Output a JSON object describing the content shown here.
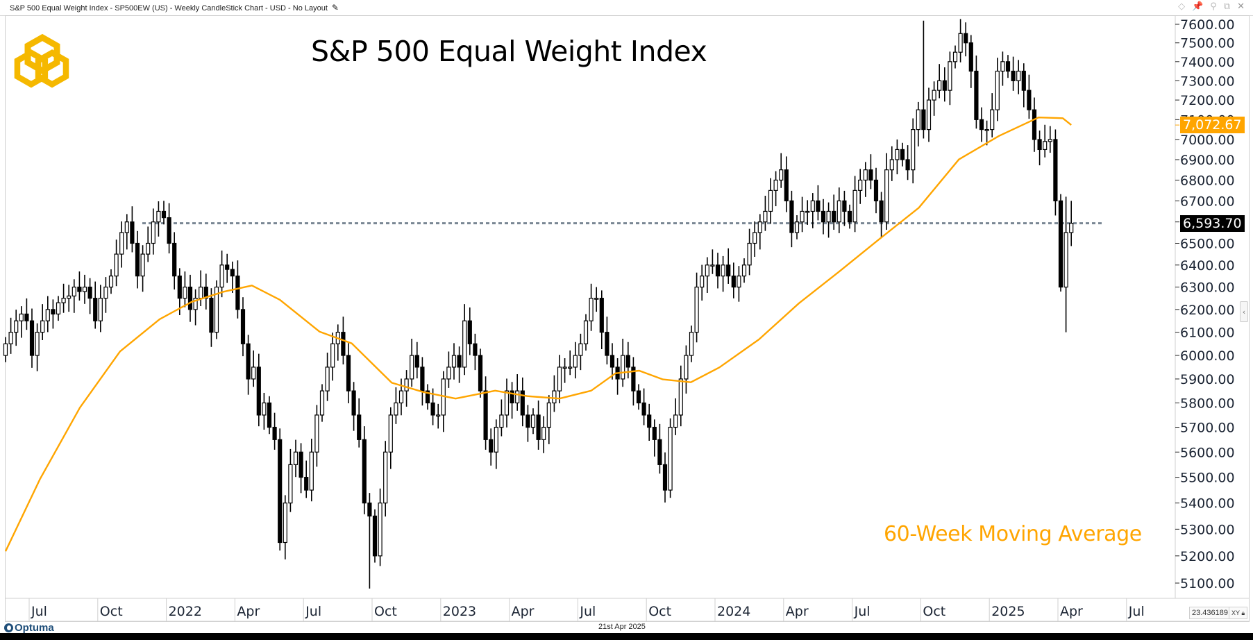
{
  "window": {
    "title": "S&P 500 Equal Weight Index - SP500EW (US) - Weekly CandleStick Chart - USD - No Layout",
    "icons": [
      "diamond-icon",
      "pin-icon",
      "link-icon",
      "restore-icon",
      "close-icon"
    ]
  },
  "footer": {
    "brand": "Optuma",
    "date": "21st Apr 2025"
  },
  "scale_box": {
    "value": "23.436189",
    "xy_label": "XY"
  },
  "colors": {
    "ma": "#FFA500",
    "dotted": "#7a8794",
    "candle": "#000000",
    "logo": "#F5B800"
  },
  "chart_data": {
    "type": "candlestick",
    "title": "S&P 500 Equal Weight Index",
    "annotation": "60-Week Moving Average",
    "xlabel": "",
    "ylabel": "",
    "y_scale": "log",
    "ylim": [
      5030,
      7660
    ],
    "y_ticks": [
      "7600.00",
      "7500.00",
      "7400.00",
      "7300.00",
      "7200.00",
      "7100.00",
      "7000.00",
      "6900.00",
      "6800.00",
      "6700.00",
      "6600.00",
      "6500.00",
      "6400.00",
      "6300.00",
      "6200.00",
      "6100.00",
      "6000.00",
      "5900.00",
      "5800.00",
      "5700.00",
      "5600.00",
      "5500.00",
      "5400.00",
      "5300.00",
      "5200.00",
      "5100.00"
    ],
    "y_tick_values": [
      7600,
      7500,
      7400,
      7300,
      7200,
      7100,
      7000,
      6900,
      6800,
      6700,
      6600,
      6500,
      6400,
      6300,
      6200,
      6100,
      6000,
      5900,
      5800,
      5700,
      5600,
      5500,
      5400,
      5300,
      5200,
      5100
    ],
    "x_ticks": [
      {
        "label": "Jul",
        "week": 5
      },
      {
        "label": "Oct",
        "week": 18
      },
      {
        "label": "2022",
        "week": 31
      },
      {
        "label": "Apr",
        "week": 44
      },
      {
        "label": "Jul",
        "week": 57
      },
      {
        "label": "Oct",
        "week": 70
      },
      {
        "label": "2023",
        "week": 83
      },
      {
        "label": "Apr",
        "week": 96
      },
      {
        "label": "Jul",
        "week": 109
      },
      {
        "label": "Oct",
        "week": 122
      },
      {
        "label": "2024",
        "week": 135
      },
      {
        "label": "Apr",
        "week": 148
      },
      {
        "label": "Jul",
        "week": 161
      },
      {
        "label": "Oct",
        "week": 174
      },
      {
        "label": "2025",
        "week": 187
      },
      {
        "label": "Apr",
        "week": 200
      },
      {
        "label": "Jul",
        "week": 213
      }
    ],
    "first_week": "2021-05-31",
    "last_week": "2025-04-21",
    "closes": [
      6050,
      6100,
      6150,
      6180,
      6150,
      6000,
      6100,
      6150,
      6200,
      6180,
      6230,
      6250,
      6260,
      6300,
      6280,
      6300,
      6250,
      6150,
      6250,
      6300,
      6350,
      6450,
      6550,
      6600,
      6500,
      6350,
      6450,
      6500,
      6600,
      6650,
      6620,
      6500,
      6350,
      6250,
      6300,
      6200,
      6250,
      6300,
      6250,
      6100,
      6300,
      6400,
      6380,
      6350,
      6200,
      6050,
      5900,
      5950,
      5750,
      5800,
      5700,
      5650,
      5250,
      5400,
      5550,
      5600,
      5500,
      5450,
      5600,
      5750,
      5850,
      5950,
      6050,
      6100,
      6000,
      5850,
      5750,
      5650,
      5400,
      5350,
      5200,
      5400,
      5600,
      5750,
      5800,
      5850,
      5900,
      6000,
      5950,
      5850,
      5800,
      5750,
      5750,
      5900,
      5950,
      6000,
      5950,
      6150,
      6050,
      6000,
      5850,
      5650,
      5600,
      5700,
      5750,
      5850,
      5800,
      5850,
      5750,
      5700,
      5750,
      5650,
      5700,
      5800,
      5850,
      5950,
      5950,
      5950,
      6000,
      6050,
      6150,
      6250,
      6250,
      6100,
      6000,
      5950,
      5900,
      6000,
      5950,
      5850,
      5800,
      5750,
      5700,
      5650,
      5550,
      5450,
      5700,
      5750,
      5900,
      6000,
      6100,
      6300,
      6350,
      6400,
      6400,
      6350,
      6400,
      6350,
      6300,
      6350,
      6400,
      6500,
      6550,
      6600,
      6650,
      6750,
      6800,
      6850,
      6700,
      6550,
      6600,
      6650,
      6650,
      6700,
      6650,
      6600,
      6650,
      6600,
      6700,
      6650,
      6600,
      6750,
      6800,
      6850,
      6800,
      6700,
      6600,
      6850,
      6900,
      6950,
      6900,
      6850,
      7050,
      7150,
      7050,
      7200,
      7250,
      7300,
      7250,
      7400,
      7450,
      7550,
      7500,
      7350,
      7100,
      7050,
      7050,
      7150,
      7350,
      7400,
      7350,
      7300,
      7350,
      7250,
      7150,
      7000,
      6950,
      6990,
      7000,
      6700,
      6300,
      6550,
      6593.7
    ],
    "first_open": 6000,
    "default_wick_pct": 0.8,
    "extreme_highs": [
      {
        "week": 30,
        "value": 6700
      },
      {
        "week": 174,
        "value": 7620
      },
      {
        "week": 201,
        "value": 6720
      },
      {
        "week": 202,
        "value": 6700
      }
    ],
    "extreme_lows": [
      {
        "week": 69,
        "value": 5080
      },
      {
        "week": 52,
        "value": 5220
      },
      {
        "week": 126,
        "value": 5420
      },
      {
        "week": 201,
        "value": 6100
      },
      {
        "week": 200,
        "value": 6280
      }
    ],
    "moving_average": {
      "name": "60-Week Moving Average",
      "period": 60,
      "last_value": 7072.67,
      "last_value_label": "7,072.67",
      "points": [
        {
          "week": 0,
          "value": 5217
        },
        {
          "week": 6.5,
          "value": 5492
        },
        {
          "week": 14.1,
          "value": 5781
        },
        {
          "week": 21.7,
          "value": 6017
        },
        {
          "week": 29.2,
          "value": 6157
        },
        {
          "week": 35.3,
          "value": 6234
        },
        {
          "week": 41.3,
          "value": 6279
        },
        {
          "week": 46.7,
          "value": 6307
        },
        {
          "week": 52,
          "value": 6243
        },
        {
          "week": 59.5,
          "value": 6103
        },
        {
          "week": 65.6,
          "value": 6052
        },
        {
          "week": 73.2,
          "value": 5884
        },
        {
          "week": 79.2,
          "value": 5845
        },
        {
          "week": 85.3,
          "value": 5818
        },
        {
          "week": 92.8,
          "value": 5851
        },
        {
          "week": 98.9,
          "value": 5828
        },
        {
          "week": 105,
          "value": 5818
        },
        {
          "week": 111,
          "value": 5851
        },
        {
          "week": 115.6,
          "value": 5924
        },
        {
          "week": 120.1,
          "value": 5935
        },
        {
          "week": 124.6,
          "value": 5898
        },
        {
          "week": 129.9,
          "value": 5886
        },
        {
          "week": 135.3,
          "value": 5949
        },
        {
          "week": 142.8,
          "value": 6069
        },
        {
          "week": 150.4,
          "value": 6228
        },
        {
          "week": 158,
          "value": 6370
        },
        {
          "week": 165.5,
          "value": 6517
        },
        {
          "week": 173.1,
          "value": 6667
        },
        {
          "week": 180.7,
          "value": 6901
        },
        {
          "week": 188.3,
          "value": 7018
        },
        {
          "week": 195.8,
          "value": 7111
        },
        {
          "week": 200.4,
          "value": 7107
        },
        {
          "week": 202,
          "value": 7072.67
        }
      ]
    },
    "horizontal_line": {
      "value": 6593.7,
      "style": "dotted",
      "from_week": 26,
      "to_week": 208
    },
    "last_close": 6593.7,
    "last_close_label": "6,593.70"
  }
}
